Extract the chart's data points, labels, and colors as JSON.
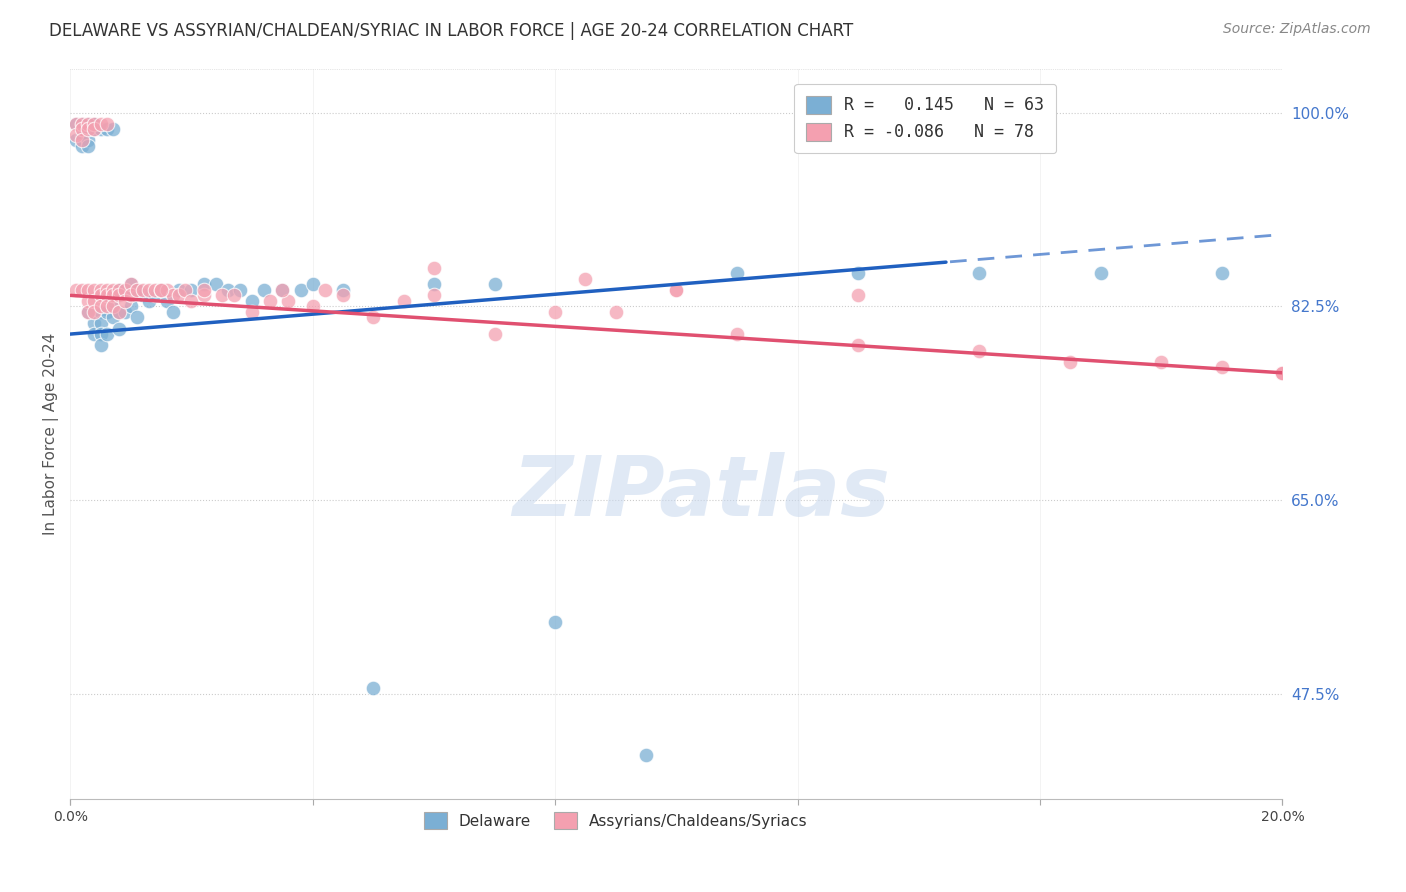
{
  "title": "DELAWARE VS ASSYRIAN/CHALDEAN/SYRIAC IN LABOR FORCE | AGE 20-24 CORRELATION CHART",
  "source": "Source: ZipAtlas.com",
  "ylabel": "In Labor Force | Age 20-24",
  "x_min": 0.0,
  "x_max": 0.2,
  "y_min": 0.38,
  "y_max": 1.04,
  "y_ticks_right": [
    1.0,
    0.825,
    0.65,
    0.475
  ],
  "y_tick_labels_right": [
    "100.0%",
    "82.5%",
    "65.0%",
    "47.5%"
  ],
  "x_ticks": [
    0.0,
    0.04,
    0.08,
    0.12,
    0.16,
    0.2
  ],
  "legend_blue_label": "R =   0.145   N = 63",
  "legend_pink_label": "R = -0.086   N = 78",
  "blue_color": "#7bafd4",
  "pink_color": "#f4a0b0",
  "trend_blue_color": "#2060c0",
  "trend_pink_color": "#e05070",
  "watermark": "ZIPatlas",
  "blue_scatter_x": [
    0.001,
    0.001,
    0.002,
    0.002,
    0.002,
    0.002,
    0.003,
    0.003,
    0.003,
    0.003,
    0.003,
    0.004,
    0.004,
    0.004,
    0.004,
    0.005,
    0.005,
    0.005,
    0.005,
    0.005,
    0.006,
    0.006,
    0.006,
    0.007,
    0.007,
    0.007,
    0.008,
    0.008,
    0.008,
    0.009,
    0.009,
    0.01,
    0.01,
    0.011,
    0.011,
    0.012,
    0.013,
    0.014,
    0.015,
    0.016,
    0.017,
    0.018,
    0.02,
    0.022,
    0.024,
    0.026,
    0.028,
    0.03,
    0.032,
    0.035,
    0.038,
    0.04,
    0.045,
    0.05,
    0.06,
    0.07,
    0.08,
    0.095,
    0.11,
    0.13,
    0.15,
    0.17,
    0.19
  ],
  "blue_scatter_y": [
    0.99,
    0.975,
    0.99,
    0.985,
    0.98,
    0.97,
    0.99,
    0.985,
    0.975,
    0.97,
    0.82,
    0.99,
    0.985,
    0.81,
    0.8,
    0.985,
    0.82,
    0.81,
    0.8,
    0.79,
    0.985,
    0.82,
    0.8,
    0.985,
    0.83,
    0.815,
    0.84,
    0.82,
    0.805,
    0.84,
    0.82,
    0.845,
    0.825,
    0.84,
    0.815,
    0.835,
    0.83,
    0.835,
    0.84,
    0.83,
    0.82,
    0.84,
    0.84,
    0.845,
    0.845,
    0.84,
    0.84,
    0.83,
    0.84,
    0.84,
    0.84,
    0.845,
    0.84,
    0.48,
    0.845,
    0.845,
    0.54,
    0.42,
    0.855,
    0.855,
    0.855,
    0.855,
    0.855
  ],
  "pink_scatter_x": [
    0.001,
    0.001,
    0.001,
    0.002,
    0.002,
    0.002,
    0.002,
    0.003,
    0.003,
    0.003,
    0.003,
    0.003,
    0.004,
    0.004,
    0.004,
    0.004,
    0.004,
    0.005,
    0.005,
    0.005,
    0.005,
    0.006,
    0.006,
    0.006,
    0.006,
    0.007,
    0.007,
    0.007,
    0.008,
    0.008,
    0.008,
    0.009,
    0.009,
    0.01,
    0.01,
    0.011,
    0.012,
    0.013,
    0.014,
    0.015,
    0.016,
    0.017,
    0.018,
    0.019,
    0.02,
    0.022,
    0.025,
    0.027,
    0.03,
    0.033,
    0.036,
    0.04,
    0.045,
    0.05,
    0.055,
    0.06,
    0.07,
    0.08,
    0.09,
    0.1,
    0.11,
    0.13,
    0.15,
    0.165,
    0.18,
    0.19,
    0.2,
    0.2,
    0.2,
    0.2,
    0.015,
    0.022,
    0.035,
    0.042,
    0.06,
    0.085,
    0.1,
    0.13
  ],
  "pink_scatter_y": [
    0.99,
    0.98,
    0.84,
    0.99,
    0.985,
    0.975,
    0.84,
    0.99,
    0.985,
    0.84,
    0.83,
    0.82,
    0.99,
    0.985,
    0.84,
    0.83,
    0.82,
    0.99,
    0.84,
    0.835,
    0.825,
    0.99,
    0.84,
    0.835,
    0.825,
    0.84,
    0.835,
    0.825,
    0.84,
    0.835,
    0.82,
    0.84,
    0.83,
    0.845,
    0.835,
    0.84,
    0.84,
    0.84,
    0.84,
    0.84,
    0.84,
    0.835,
    0.835,
    0.84,
    0.83,
    0.835,
    0.835,
    0.835,
    0.82,
    0.83,
    0.83,
    0.825,
    0.835,
    0.815,
    0.83,
    0.835,
    0.8,
    0.82,
    0.82,
    0.84,
    0.8,
    0.79,
    0.785,
    0.775,
    0.775,
    0.77,
    0.765,
    0.765,
    0.765,
    0.765,
    0.84,
    0.84,
    0.84,
    0.84,
    0.86,
    0.85,
    0.84,
    0.835
  ]
}
